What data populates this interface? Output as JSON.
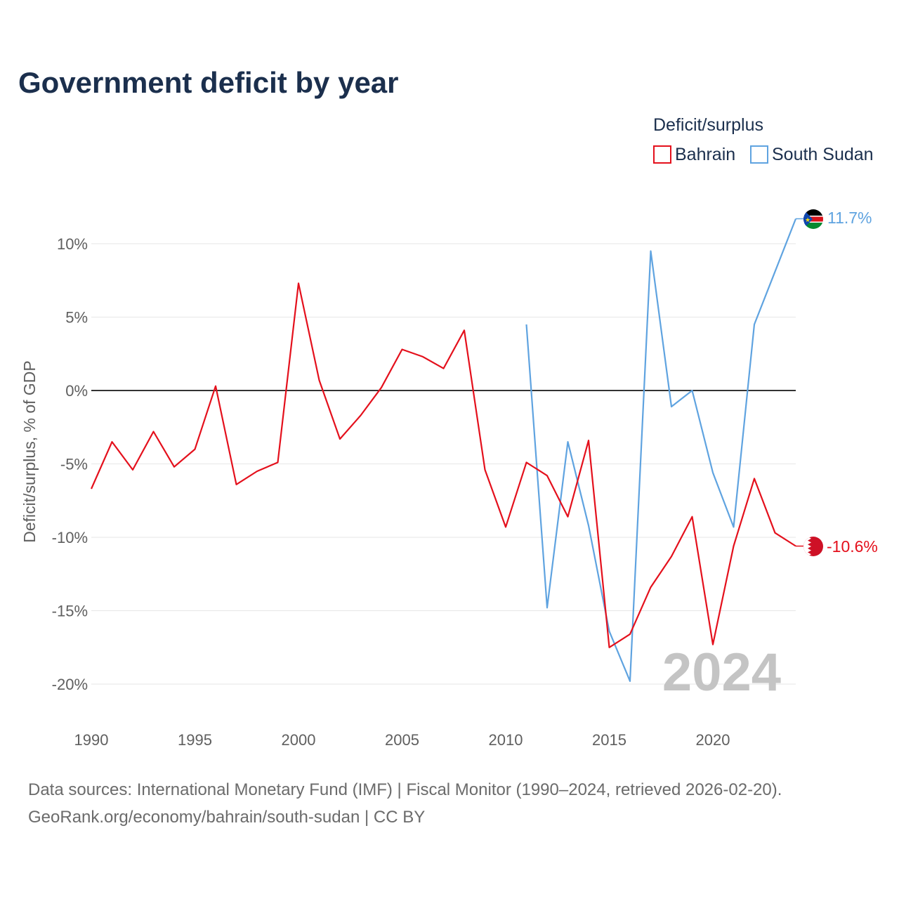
{
  "chart_data": {
    "type": "line",
    "title": "Government deficit by year",
    "xlabel": "",
    "ylabel": "Deficit/surplus, % of GDP",
    "xlim": [
      1990,
      2024
    ],
    "ylim": [
      -22,
      12
    ],
    "x_ticks": [
      1990,
      1995,
      2000,
      2005,
      2010,
      2015,
      2020
    ],
    "x_tick_labels": [
      "1990",
      "1995",
      "2000",
      "2005",
      "2010",
      "2015",
      "2020"
    ],
    "y_ticks": [
      10,
      5,
      0,
      -5,
      -10,
      -15,
      -20
    ],
    "y_tick_labels": [
      "10%",
      "5%",
      "0%",
      "-5%",
      "-10%",
      "-15%",
      "-20%"
    ],
    "grid": true,
    "legend": {
      "title": "Deficit/surplus",
      "placement": "top-right"
    },
    "watermark_year": "2024",
    "series": [
      {
        "name": "Bahrain",
        "color": "#e4101c",
        "flag": "bahrain-flag",
        "end_label": "-10.6%",
        "x": [
          1990,
          1991,
          1992,
          1993,
          1994,
          1995,
          1996,
          1997,
          1998,
          1999,
          2000,
          2001,
          2002,
          2003,
          2004,
          2005,
          2006,
          2007,
          2008,
          2009,
          2010,
          2011,
          2012,
          2013,
          2014,
          2015,
          2016,
          2017,
          2018,
          2019,
          2020,
          2021,
          2022,
          2023,
          2024
        ],
        "values": [
          -6.7,
          -3.5,
          -5.4,
          -2.8,
          -5.2,
          -4.0,
          0.3,
          -6.4,
          -5.5,
          -4.9,
          7.3,
          0.7,
          -3.3,
          -1.7,
          0.2,
          2.8,
          2.3,
          1.5,
          4.1,
          -5.4,
          -9.3,
          -4.9,
          -5.8,
          -8.6,
          -3.4,
          -17.5,
          -16.6,
          -13.4,
          -11.3,
          -8.6,
          -17.3,
          -10.6,
          -6.0,
          -9.7,
          -10.6
        ]
      },
      {
        "name": "South Sudan",
        "color": "#5fa3e0",
        "flag": "south-sudan-flag",
        "end_label": "11.7%",
        "x": [
          2011,
          2012,
          2013,
          2014,
          2015,
          2016,
          2017,
          2018,
          2019,
          2020,
          2021,
          2022,
          2023,
          2024
        ],
        "values": [
          4.5,
          -14.8,
          -3.5,
          -9.2,
          -16.4,
          -19.8,
          9.5,
          -1.1,
          0.0,
          -5.6,
          -9.3,
          4.5,
          8.1,
          11.7
        ]
      }
    ]
  },
  "source_line_1": "Data sources: International Monetary Fund (IMF) | Fiscal Monitor (1990–2024, retrieved 2026-02-20).",
  "source_line_2": "GeoRank.org/economy/bahrain/south-sudan | CC BY"
}
